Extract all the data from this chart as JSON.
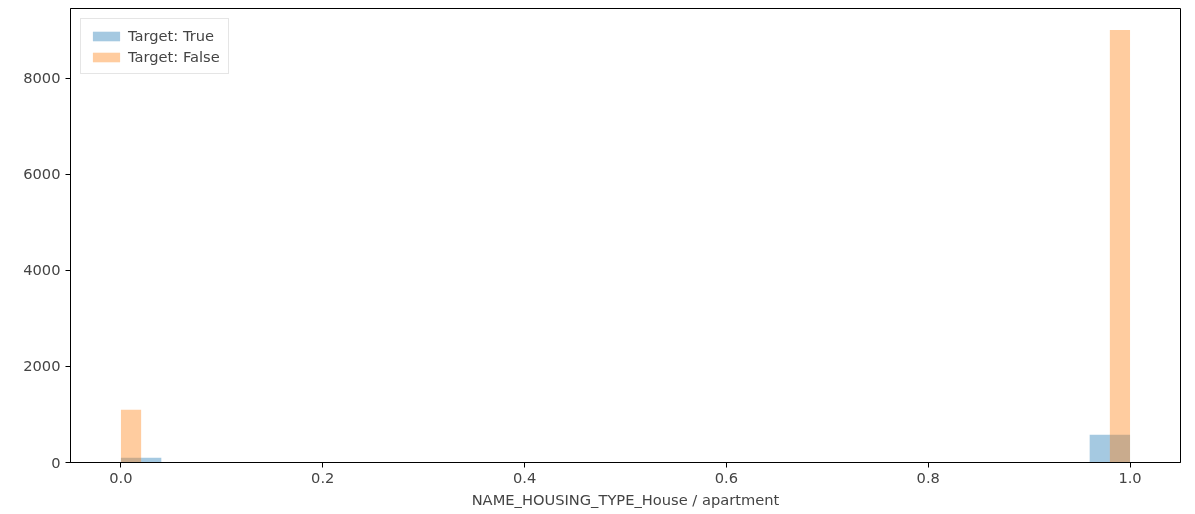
{
  "chart_data": {
    "type": "histogram",
    "xlabel": "NAME_HOUSING_TYPE_House / apartment",
    "bins": [
      0,
      0.02,
      0.04,
      0.06,
      0.08,
      0.1,
      0.12,
      0.14,
      0.16,
      0.18,
      0.2,
      0.22,
      0.24,
      0.26,
      0.28,
      0.3,
      0.32,
      0.34,
      0.36,
      0.38,
      0.4,
      0.42,
      0.44,
      0.46,
      0.48,
      0.5,
      0.52,
      0.54,
      0.56,
      0.58,
      0.6,
      0.62,
      0.64,
      0.66,
      0.68,
      0.7,
      0.72,
      0.74,
      0.76,
      0.78,
      0.8,
      0.82,
      0.84,
      0.86,
      0.88,
      0.9,
      0.92,
      0.94,
      0.96,
      0.98,
      1
    ],
    "series": [
      {
        "name": "Target: True",
        "color": "#1f77b4",
        "values": [
          100,
          100,
          0,
          0,
          0,
          0,
          0,
          0,
          0,
          0,
          0,
          0,
          0,
          0,
          0,
          0,
          0,
          0,
          0,
          0,
          0,
          0,
          0,
          0,
          0,
          0,
          0,
          0,
          0,
          0,
          0,
          0,
          0,
          0,
          0,
          0,
          0,
          0,
          0,
          0,
          0,
          0,
          0,
          0,
          0,
          0,
          0,
          0,
          580,
          580
        ]
      },
      {
        "name": "Target: False",
        "color": "#ff7f0e",
        "values": [
          1100,
          0,
          0,
          0,
          0,
          0,
          0,
          0,
          0,
          0,
          0,
          0,
          0,
          0,
          0,
          0,
          0,
          0,
          0,
          0,
          0,
          0,
          0,
          0,
          0,
          0,
          0,
          0,
          0,
          0,
          0,
          0,
          0,
          0,
          0,
          0,
          0,
          0,
          0,
          0,
          0,
          0,
          0,
          0,
          0,
          0,
          0,
          0,
          0,
          9000
        ]
      }
    ],
    "xlim": [
      -0.05,
      1.05
    ],
    "ylim": [
      0,
      9450
    ],
    "xticks": [
      {
        "value": 0,
        "label": "0.0"
      },
      {
        "value": 0.2,
        "label": "0.2"
      },
      {
        "value": 0.4,
        "label": "0.4"
      },
      {
        "value": 0.6,
        "label": "0.6"
      },
      {
        "value": 0.8,
        "label": "0.8"
      },
      {
        "value": 1,
        "label": "1.0"
      }
    ],
    "yticks": [
      0,
      2000,
      4000,
      6000,
      8000
    ],
    "legend": "top left",
    "grid": false
  }
}
